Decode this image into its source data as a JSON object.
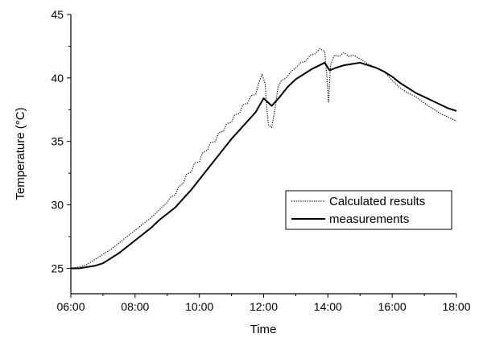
{
  "chart_data": {
    "type": "line",
    "title": "",
    "xlabel": "Time",
    "ylabel": "Temperature (°C)",
    "xlim": [
      6,
      18
    ],
    "ylim": [
      23,
      45
    ],
    "x_ticks": [
      {
        "value": 6,
        "label": "06:00"
      },
      {
        "value": 8,
        "label": "08:00"
      },
      {
        "value": 10,
        "label": "10:00"
      },
      {
        "value": 12,
        "label": "12:00"
      },
      {
        "value": 14,
        "label": "14:00"
      },
      {
        "value": 16,
        "label": "16:00"
      },
      {
        "value": 18,
        "label": "18:00"
      }
    ],
    "y_ticks": [
      {
        "value": 25,
        "label": "25"
      },
      {
        "value": 30,
        "label": "30"
      },
      {
        "value": 35,
        "label": "35"
      },
      {
        "value": 40,
        "label": "40"
      },
      {
        "value": 45,
        "label": "45"
      }
    ],
    "grid": false,
    "legend": {
      "position": "center-right"
    },
    "series": [
      {
        "name": "Calculated results",
        "style": "dotted",
        "color": "#000000",
        "points": [
          [
            6.0,
            25.0
          ],
          [
            6.25,
            25.1
          ],
          [
            6.5,
            25.3
          ],
          [
            6.75,
            25.7
          ],
          [
            7.0,
            26.1
          ],
          [
            7.25,
            26.5
          ],
          [
            7.5,
            27.0
          ],
          [
            7.75,
            27.5
          ],
          [
            8.0,
            28.0
          ],
          [
            8.25,
            28.5
          ],
          [
            8.5,
            29.0
          ],
          [
            8.75,
            29.6
          ],
          [
            9.0,
            30.2
          ],
          [
            9.1,
            30.6
          ],
          [
            9.25,
            30.8
          ],
          [
            9.35,
            31.4
          ],
          [
            9.5,
            31.7
          ],
          [
            9.6,
            32.4
          ],
          [
            9.75,
            32.6
          ],
          [
            9.85,
            33.3
          ],
          [
            10.0,
            33.4
          ],
          [
            10.1,
            34.1
          ],
          [
            10.25,
            34.3
          ],
          [
            10.35,
            34.9
          ],
          [
            10.5,
            35.0
          ],
          [
            10.6,
            35.7
          ],
          [
            10.75,
            35.8
          ],
          [
            10.85,
            36.4
          ],
          [
            11.0,
            36.5
          ],
          [
            11.1,
            37.1
          ],
          [
            11.25,
            37.2
          ],
          [
            11.35,
            37.9
          ],
          [
            11.5,
            38.0
          ],
          [
            11.6,
            38.6
          ],
          [
            11.75,
            38.7
          ],
          [
            11.85,
            39.6
          ],
          [
            11.95,
            40.3
          ],
          [
            12.05,
            39.5
          ],
          [
            12.1,
            37.5
          ],
          [
            12.15,
            36.3
          ],
          [
            12.25,
            36.1
          ],
          [
            12.35,
            37.5
          ],
          [
            12.45,
            39.3
          ],
          [
            12.55,
            39.8
          ],
          [
            12.7,
            40.0
          ],
          [
            12.85,
            40.5
          ],
          [
            13.0,
            40.8
          ],
          [
            13.15,
            41.2
          ],
          [
            13.3,
            41.3
          ],
          [
            13.45,
            41.8
          ],
          [
            13.6,
            41.9
          ],
          [
            13.75,
            42.3
          ],
          [
            13.9,
            42.1
          ],
          [
            13.97,
            40.0
          ],
          [
            14.02,
            38.1
          ],
          [
            14.08,
            41.0
          ],
          [
            14.2,
            41.8
          ],
          [
            14.35,
            41.7
          ],
          [
            14.5,
            42.0
          ],
          [
            14.65,
            41.7
          ],
          [
            14.8,
            41.8
          ],
          [
            15.0,
            41.5
          ],
          [
            15.25,
            41.1
          ],
          [
            15.5,
            40.8
          ],
          [
            15.75,
            40.5
          ],
          [
            16.0,
            39.8
          ],
          [
            16.25,
            39.2
          ],
          [
            16.5,
            38.8
          ],
          [
            16.75,
            38.5
          ],
          [
            17.0,
            38.0
          ],
          [
            17.25,
            37.6
          ],
          [
            17.5,
            37.2
          ],
          [
            17.75,
            36.9
          ],
          [
            18.0,
            36.6
          ]
        ]
      },
      {
        "name": "measurements",
        "style": "solid",
        "color": "#000000",
        "points": [
          [
            6.0,
            25.0
          ],
          [
            6.25,
            25.0
          ],
          [
            6.5,
            25.1
          ],
          [
            6.75,
            25.2
          ],
          [
            7.0,
            25.4
          ],
          [
            7.25,
            25.8
          ],
          [
            7.5,
            26.2
          ],
          [
            7.75,
            26.7
          ],
          [
            8.0,
            27.2
          ],
          [
            8.25,
            27.7
          ],
          [
            8.5,
            28.2
          ],
          [
            8.75,
            28.8
          ],
          [
            9.0,
            29.3
          ],
          [
            9.25,
            29.8
          ],
          [
            9.5,
            30.5
          ],
          [
            9.75,
            31.2
          ],
          [
            10.0,
            32.0
          ],
          [
            10.25,
            32.8
          ],
          [
            10.5,
            33.6
          ],
          [
            10.75,
            34.4
          ],
          [
            11.0,
            35.2
          ],
          [
            11.25,
            35.9
          ],
          [
            11.5,
            36.6
          ],
          [
            11.75,
            37.3
          ],
          [
            12.0,
            38.4
          ],
          [
            12.25,
            37.8
          ],
          [
            12.5,
            38.5
          ],
          [
            12.75,
            39.3
          ],
          [
            13.0,
            39.9
          ],
          [
            13.25,
            40.3
          ],
          [
            13.5,
            40.7
          ],
          [
            13.9,
            41.2
          ],
          [
            14.05,
            40.6
          ],
          [
            14.25,
            40.8
          ],
          [
            14.5,
            41.0
          ],
          [
            14.75,
            41.1
          ],
          [
            15.0,
            41.2
          ],
          [
            15.25,
            41.0
          ],
          [
            15.5,
            40.8
          ],
          [
            15.75,
            40.5
          ],
          [
            16.0,
            40.1
          ],
          [
            16.25,
            39.6
          ],
          [
            16.5,
            39.2
          ],
          [
            16.75,
            38.8
          ],
          [
            17.0,
            38.5
          ],
          [
            17.25,
            38.2
          ],
          [
            17.5,
            37.9
          ],
          [
            17.75,
            37.6
          ],
          [
            18.0,
            37.4
          ]
        ]
      }
    ]
  }
}
